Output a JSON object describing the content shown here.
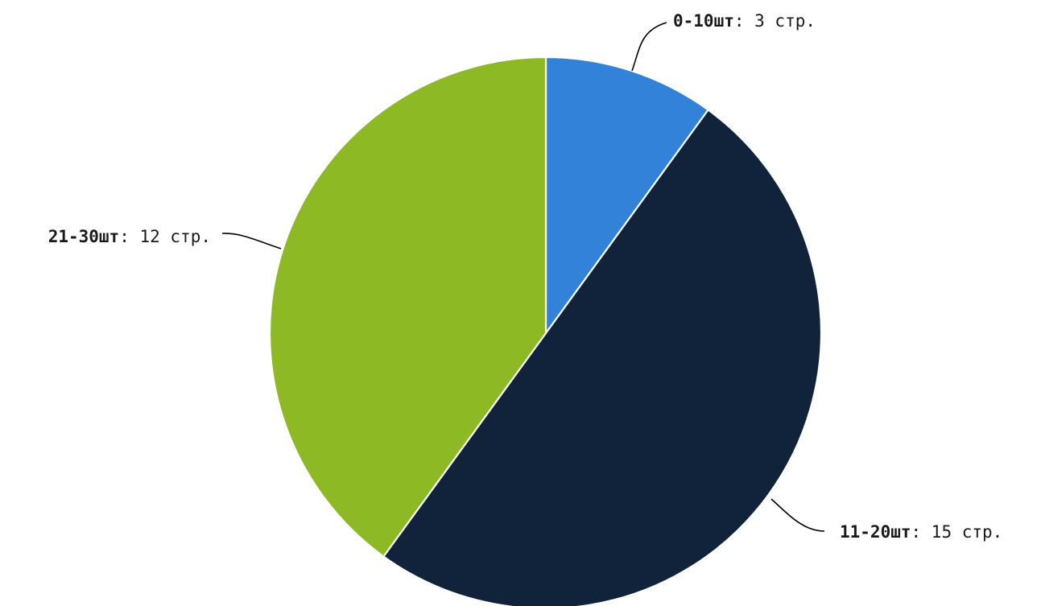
{
  "chart_data": {
    "type": "pie",
    "slices": [
      {
        "label": "0-10шт",
        "value": 3,
        "display": "3 стр.",
        "color": "#3182d8"
      },
      {
        "label": "11-20шт",
        "value": 15,
        "display": "15 стр.",
        "color": "#10233b"
      },
      {
        "label": "21-30шт",
        "value": 12,
        "display": "12 стр.",
        "color": "#8dba24"
      }
    ],
    "title": "",
    "legend": "none"
  }
}
